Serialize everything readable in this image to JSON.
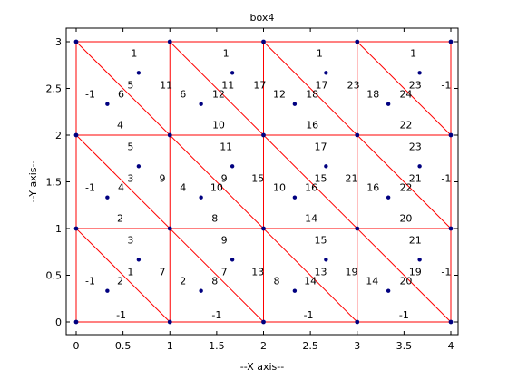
{
  "chart_data": {
    "type": "scatter",
    "title": "box4",
    "xlabel": "--X axis--",
    "ylabel": "--Y axis--",
    "xlim": [
      0,
      4
    ],
    "ylim": [
      0,
      3
    ],
    "xticks": [
      "0",
      "0.5",
      "1",
      "1.5",
      "2",
      "2.5",
      "3",
      "3.5",
      "4"
    ],
    "yticks": [
      "0",
      "0.5",
      "1",
      "1.5",
      "2",
      "2.5",
      "3"
    ],
    "grid": false,
    "colors": {
      "edge": "#ff0000",
      "node": "#000080",
      "text": "#000000",
      "axes": "#000000"
    },
    "nodes": [
      [
        0,
        0
      ],
      [
        1,
        0
      ],
      [
        2,
        0
      ],
      [
        3,
        0
      ],
      [
        4,
        0
      ],
      [
        0,
        1
      ],
      [
        1,
        1
      ],
      [
        2,
        1
      ],
      [
        3,
        1
      ],
      [
        4,
        1
      ],
      [
        0,
        2
      ],
      [
        1,
        2
      ],
      [
        2,
        2
      ],
      [
        3,
        2
      ],
      [
        4,
        2
      ],
      [
        0,
        3
      ],
      [
        1,
        3
      ],
      [
        2,
        3
      ],
      [
        3,
        3
      ],
      [
        4,
        3
      ]
    ],
    "centroids": [
      [
        0.333,
        0.333
      ],
      [
        0.667,
        0.667
      ],
      [
        1.333,
        0.333
      ],
      [
        1.667,
        0.667
      ],
      [
        2.333,
        0.333
      ],
      [
        2.667,
        0.667
      ],
      [
        3.333,
        0.333
      ],
      [
        3.667,
        0.667
      ],
      [
        0.333,
        1.333
      ],
      [
        0.667,
        1.667
      ],
      [
        1.333,
        1.333
      ],
      [
        1.667,
        1.667
      ],
      [
        2.333,
        1.333
      ],
      [
        2.667,
        1.667
      ],
      [
        3.333,
        1.333
      ],
      [
        3.667,
        1.667
      ],
      [
        0.333,
        2.333
      ],
      [
        0.667,
        2.667
      ],
      [
        1.333,
        2.333
      ],
      [
        1.667,
        2.667
      ],
      [
        2.333,
        2.333
      ],
      [
        2.667,
        2.667
      ],
      [
        3.333,
        2.333
      ],
      [
        3.667,
        2.667
      ]
    ],
    "edges": [
      [
        [
          0,
          0
        ],
        [
          4,
          0
        ]
      ],
      [
        [
          0,
          1
        ],
        [
          4,
          1
        ]
      ],
      [
        [
          0,
          2
        ],
        [
          4,
          2
        ]
      ],
      [
        [
          0,
          3
        ],
        [
          4,
          3
        ]
      ],
      [
        [
          0,
          0
        ],
        [
          0,
          3
        ]
      ],
      [
        [
          1,
          0
        ],
        [
          1,
          3
        ]
      ],
      [
        [
          2,
          0
        ],
        [
          2,
          3
        ]
      ],
      [
        [
          3,
          0
        ],
        [
          3,
          3
        ]
      ],
      [
        [
          4,
          0
        ],
        [
          4,
          3
        ]
      ],
      [
        [
          0,
          1
        ],
        [
          1,
          0
        ]
      ],
      [
        [
          1,
          1
        ],
        [
          2,
          0
        ]
      ],
      [
        [
          2,
          1
        ],
        [
          3,
          0
        ]
      ],
      [
        [
          3,
          1
        ],
        [
          4,
          0
        ]
      ],
      [
        [
          0,
          2
        ],
        [
          1,
          1
        ]
      ],
      [
        [
          1,
          2
        ],
        [
          2,
          1
        ]
      ],
      [
        [
          2,
          2
        ],
        [
          3,
          1
        ]
      ],
      [
        [
          3,
          2
        ],
        [
          4,
          1
        ]
      ],
      [
        [
          0,
          3
        ],
        [
          1,
          2
        ]
      ],
      [
        [
          1,
          3
        ],
        [
          2,
          2
        ]
      ],
      [
        [
          2,
          3
        ],
        [
          3,
          2
        ]
      ],
      [
        [
          3,
          3
        ],
        [
          4,
          2
        ]
      ]
    ],
    "annotations": [
      {
        "text": "-1",
        "x": 0.15,
        "y": 0.44
      },
      {
        "text": "2",
        "x": 0.47,
        "y": 0.44
      },
      {
        "text": "-1",
        "x": 0.48,
        "y": 0.08
      },
      {
        "text": "1",
        "x": 0.58,
        "y": 0.54
      },
      {
        "text": "3",
        "x": 0.58,
        "y": 0.88
      },
      {
        "text": "7",
        "x": 0.92,
        "y": 0.54
      },
      {
        "text": "2",
        "x": 1.14,
        "y": 0.44
      },
      {
        "text": "8",
        "x": 1.48,
        "y": 0.44
      },
      {
        "text": "-1",
        "x": 1.5,
        "y": 0.08
      },
      {
        "text": "7",
        "x": 1.58,
        "y": 0.54
      },
      {
        "text": "9",
        "x": 1.58,
        "y": 0.88
      },
      {
        "text": "13",
        "x": 1.94,
        "y": 0.54
      },
      {
        "text": "8",
        "x": 2.14,
        "y": 0.44
      },
      {
        "text": "14",
        "x": 2.5,
        "y": 0.44
      },
      {
        "text": "-1",
        "x": 2.48,
        "y": 0.08
      },
      {
        "text": "13",
        "x": 2.61,
        "y": 0.54
      },
      {
        "text": "15",
        "x": 2.61,
        "y": 0.88
      },
      {
        "text": "19",
        "x": 2.94,
        "y": 0.54
      },
      {
        "text": "14",
        "x": 3.16,
        "y": 0.44
      },
      {
        "text": "20",
        "x": 3.52,
        "y": 0.44
      },
      {
        "text": "-1",
        "x": 3.5,
        "y": 0.08
      },
      {
        "text": "19",
        "x": 3.62,
        "y": 0.54
      },
      {
        "text": "21",
        "x": 3.62,
        "y": 0.88
      },
      {
        "text": "-1",
        "x": 3.95,
        "y": 0.54
      },
      {
        "text": "-1",
        "x": 0.15,
        "y": 1.44
      },
      {
        "text": "4",
        "x": 0.48,
        "y": 1.44
      },
      {
        "text": "2",
        "x": 0.47,
        "y": 1.11
      },
      {
        "text": "3",
        "x": 0.58,
        "y": 1.54
      },
      {
        "text": "5",
        "x": 0.58,
        "y": 1.88
      },
      {
        "text": "9",
        "x": 0.92,
        "y": 1.54
      },
      {
        "text": "4",
        "x": 1.14,
        "y": 1.44
      },
      {
        "text": "10",
        "x": 1.5,
        "y": 1.44
      },
      {
        "text": "8",
        "x": 1.48,
        "y": 1.11
      },
      {
        "text": "9",
        "x": 1.58,
        "y": 1.54
      },
      {
        "text": "11",
        "x": 1.6,
        "y": 1.88
      },
      {
        "text": "15",
        "x": 1.94,
        "y": 1.54
      },
      {
        "text": "10",
        "x": 2.17,
        "y": 1.44
      },
      {
        "text": "16",
        "x": 2.51,
        "y": 1.44
      },
      {
        "text": "14",
        "x": 2.51,
        "y": 1.11
      },
      {
        "text": "15",
        "x": 2.61,
        "y": 1.54
      },
      {
        "text": "17",
        "x": 2.61,
        "y": 1.88
      },
      {
        "text": "21",
        "x": 2.94,
        "y": 1.54
      },
      {
        "text": "16",
        "x": 3.17,
        "y": 1.44
      },
      {
        "text": "22",
        "x": 3.52,
        "y": 1.44
      },
      {
        "text": "20",
        "x": 3.52,
        "y": 1.11
      },
      {
        "text": "21",
        "x": 3.62,
        "y": 1.54
      },
      {
        "text": "23",
        "x": 3.62,
        "y": 1.88
      },
      {
        "text": "-1",
        "x": 3.95,
        "y": 1.54
      },
      {
        "text": "-1",
        "x": 0.15,
        "y": 2.44
      },
      {
        "text": "6",
        "x": 0.48,
        "y": 2.44
      },
      {
        "text": "4",
        "x": 0.47,
        "y": 2.11
      },
      {
        "text": "5",
        "x": 0.58,
        "y": 2.54
      },
      {
        "text": "-1",
        "x": 0.6,
        "y": 2.88
      },
      {
        "text": "11",
        "x": 0.96,
        "y": 2.54
      },
      {
        "text": "6",
        "x": 1.14,
        "y": 2.44
      },
      {
        "text": "12",
        "x": 1.52,
        "y": 2.44
      },
      {
        "text": "10",
        "x": 1.52,
        "y": 2.11
      },
      {
        "text": "11",
        "x": 1.62,
        "y": 2.54
      },
      {
        "text": "-1",
        "x": 1.58,
        "y": 2.88
      },
      {
        "text": "17",
        "x": 1.96,
        "y": 2.54
      },
      {
        "text": "12",
        "x": 2.17,
        "y": 2.44
      },
      {
        "text": "18",
        "x": 2.52,
        "y": 2.44
      },
      {
        "text": "16",
        "x": 2.52,
        "y": 2.11
      },
      {
        "text": "17",
        "x": 2.62,
        "y": 2.54
      },
      {
        "text": "-1",
        "x": 2.58,
        "y": 2.88
      },
      {
        "text": "23",
        "x": 2.96,
        "y": 2.54
      },
      {
        "text": "18",
        "x": 3.17,
        "y": 2.44
      },
      {
        "text": "24",
        "x": 3.52,
        "y": 2.44
      },
      {
        "text": "22",
        "x": 3.52,
        "y": 2.11
      },
      {
        "text": "23",
        "x": 3.62,
        "y": 2.54
      },
      {
        "text": "-1",
        "x": 3.58,
        "y": 2.88
      },
      {
        "text": "-1",
        "x": 3.95,
        "y": 2.54
      }
    ]
  }
}
